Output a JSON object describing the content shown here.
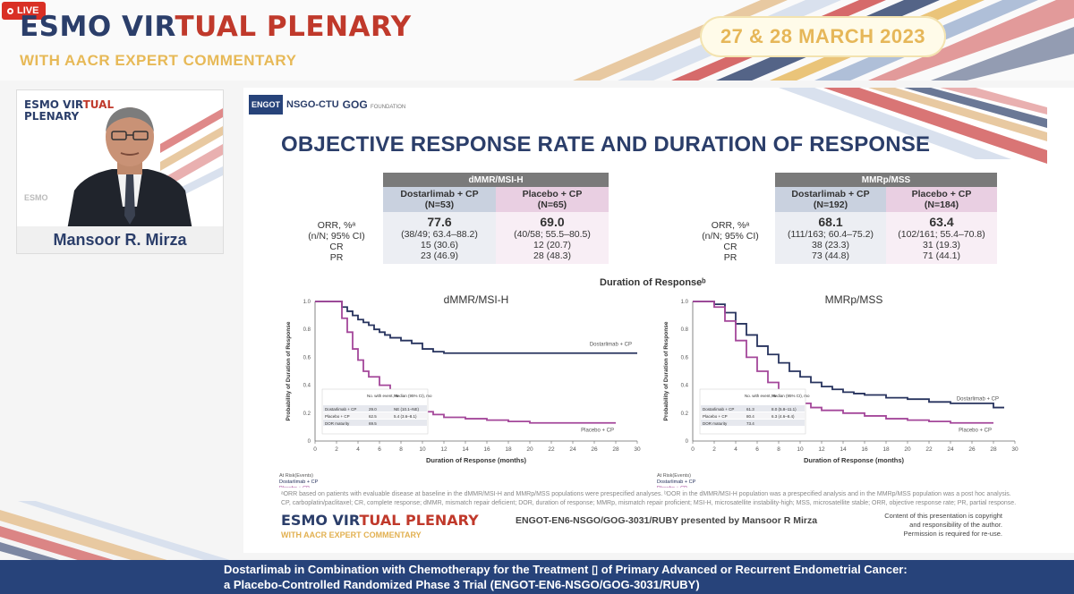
{
  "live_badge": "LIVE",
  "header": {
    "title_a": "ESMO VIR",
    "title_b": "TUAL PLENARY",
    "subtitle": "WITH AACR EXPERT COMMENTARY",
    "date": "27 & 28 MARCH 2023"
  },
  "speaker": {
    "logo_a": "ESMO VIR",
    "logo_b": "TUAL",
    "logo_c": "PLENARY",
    "watermark": "ESMO",
    "name": "Mansoor R. Mirza"
  },
  "slide": {
    "logos": {
      "engot": "ENGOT",
      "nsgo": "NSGO-CTU",
      "gog": "GOG",
      "gog_small": "FOUNDATION"
    },
    "title": "OBJECTIVE RESPONSE RATE AND DURATION OF RESPONSE",
    "row_labels": {
      "orr": "ORR, %ᵃ",
      "ci": "(n/N; 95% CI)",
      "cr": "CR",
      "pr": "PR"
    },
    "table_left": {
      "header": "dMMR/MSI-H",
      "arm1": "Dostarlimab + CP",
      "arm1_n": "(N=53)",
      "arm2": "Placebo + CP",
      "arm2_n": "(N=65)",
      "arm1_orr": "77.6",
      "arm1_ci": "(38/49; 63.4–88.2)",
      "arm1_cr": "15 (30.6)",
      "arm1_pr": "23 (46.9)",
      "arm2_orr": "69.0",
      "arm2_ci": "(40/58; 55.5–80.5)",
      "arm2_cr": "12 (20.7)",
      "arm2_pr": "28 (48.3)"
    },
    "table_right": {
      "header": "MMRp/MSS",
      "arm1": "Dostarlimab + CP",
      "arm1_n": "(N=192)",
      "arm2": "Placebo + CP",
      "arm2_n": "(N=184)",
      "arm1_orr": "68.1",
      "arm1_ci": "(111/163; 60.4–75.2)",
      "arm1_cr": "38 (23.3)",
      "arm1_pr": "73 (44.8)",
      "arm2_orr": "63.4",
      "arm2_ci": "(102/161; 55.4–70.8)",
      "arm2_cr": "31 (19.3)",
      "arm2_pr": "71 (44.1)"
    },
    "dor_title": "Duration of Responseᵇ",
    "footnote_1": "ᵃORR based on patients with evaluable disease at baseline in the dMMR/MSI-H and MMRp/MSS populations were prespecified analyses. ᵇDOR in the dMMR/MSI-H population was a prespecified analysis and in the MMRp/MSS population was a post hoc analysis.",
    "footnote_2": "CP, carboplatin/paclitaxel; CR, complete response; dMMR, mismatch repair deficient; DOR, duration of response; MMRp, mismatch repair proficient; MSI-H, microsatellite instability-high; MSS, microsatellite stable; ORR, objective response rate; PR, partial response.",
    "logo2_a": "ESMO VIR",
    "logo2_b": "TUAL PLENARY",
    "logo2_sub": "WITH AACR EXPERT COMMENTARY",
    "presented": "ENGOT-EN6-NSGO/GOG-3031/RUBY presented by Mansoor R Mirza",
    "copyright_1": "Content of this presentation is copyright",
    "copyright_2": "and responsibility of the author.",
    "copyright_3": "Permission is required for re-use."
  },
  "chart_data": [
    {
      "type": "line",
      "title": "dMMR/MSI-H",
      "xlabel": "Duration of Response (months)",
      "ylabel": "Probability of Duration of Response",
      "xlim": [
        0,
        30
      ],
      "ylim": [
        0,
        1.0
      ],
      "x_ticks": [
        0,
        2,
        4,
        6,
        8,
        10,
        12,
        14,
        16,
        18,
        20,
        22,
        24,
        26,
        28,
        30
      ],
      "y_ticks": [
        0,
        0.2,
        0.4,
        0.6,
        0.8,
        1.0
      ],
      "at_risk_label": "At Risk(Events)",
      "table_header_n": "No. with event, %",
      "table_header_median": "Median (95% CI), mo",
      "table_rows": [
        {
          "arm": "Dostarlimab + CP",
          "n": "29.0",
          "median": "NE (10.1–NE)"
        },
        {
          "arm": "Placebo + CP",
          "n": "62.5",
          "median": "5.4 (3.6–8.1)"
        },
        {
          "arm": "DOR maturity",
          "n": "69.5",
          "median": ""
        }
      ],
      "series": [
        {
          "name": "Dostarlimab + CP",
          "color": "#27335e",
          "x": [
            0,
            2,
            2.5,
            3,
            3.5,
            4,
            4.5,
            5,
            5.5,
            6,
            6.5,
            7,
            8,
            9,
            10,
            11,
            12,
            13,
            14,
            16,
            18,
            20,
            22,
            24,
            26,
            28,
            30
          ],
          "values": [
            1.0,
            1.0,
            0.96,
            0.93,
            0.9,
            0.87,
            0.85,
            0.83,
            0.8,
            0.78,
            0.76,
            0.74,
            0.72,
            0.7,
            0.66,
            0.64,
            0.63,
            0.63,
            0.63,
            0.63,
            0.63,
            0.63,
            0.63,
            0.63,
            0.63,
            0.63,
            0.63
          ]
        },
        {
          "name": "Placebo + CP",
          "color": "#a4479a",
          "x": [
            0,
            2,
            2.5,
            3,
            3.5,
            4,
            4.5,
            5,
            6,
            7,
            8,
            9,
            10,
            11,
            12,
            14,
            16,
            18,
            20,
            22,
            24,
            26,
            27,
            28
          ],
          "values": [
            1.0,
            1.0,
            0.88,
            0.78,
            0.66,
            0.58,
            0.5,
            0.46,
            0.4,
            0.34,
            0.28,
            0.24,
            0.21,
            0.19,
            0.17,
            0.16,
            0.15,
            0.14,
            0.13,
            0.13,
            0.13,
            0.13,
            0.13,
            0.13
          ]
        }
      ]
    },
    {
      "type": "line",
      "title": "MMRp/MSS",
      "xlabel": "Duration of Response (months)",
      "ylabel": "Probability of Duration of Response",
      "xlim": [
        0,
        30
      ],
      "ylim": [
        0,
        1.0
      ],
      "x_ticks": [
        0,
        2,
        4,
        6,
        8,
        10,
        12,
        14,
        16,
        18,
        20,
        22,
        24,
        26,
        28,
        30
      ],
      "y_ticks": [
        0,
        0.2,
        0.4,
        0.6,
        0.8,
        1.0
      ],
      "at_risk_label": "At Risk(Events)",
      "table_header_n": "No. with event, %",
      "table_header_median": "Median (95% CI), mo",
      "table_rows": [
        {
          "arm": "Dostarlimab + CP",
          "n": "61.3",
          "median": "8.0 (5.8–11.1)"
        },
        {
          "arm": "Placebo + CP",
          "n": "80.4",
          "median": "6.3 (4.6–8.4)"
        },
        {
          "arm": "DOR maturity",
          "n": "73.4",
          "median": ""
        }
      ],
      "series": [
        {
          "name": "Dostarlimab + CP",
          "color": "#27335e",
          "x": [
            0,
            2,
            3,
            4,
            5,
            6,
            7,
            8,
            9,
            10,
            11,
            12,
            13,
            14,
            15,
            16,
            18,
            20,
            22,
            24,
            26,
            27,
            28,
            29
          ],
          "values": [
            1.0,
            0.98,
            0.92,
            0.84,
            0.76,
            0.68,
            0.62,
            0.56,
            0.5,
            0.46,
            0.42,
            0.39,
            0.37,
            0.35,
            0.34,
            0.33,
            0.31,
            0.3,
            0.28,
            0.27,
            0.27,
            0.27,
            0.24,
            0.24
          ]
        },
        {
          "name": "Placebo + CP",
          "color": "#a4479a",
          "x": [
            0,
            2,
            3,
            4,
            5,
            6,
            7,
            8,
            9,
            10,
            11,
            12,
            14,
            16,
            18,
            20,
            22,
            24,
            26,
            28
          ],
          "values": [
            1.0,
            0.96,
            0.86,
            0.72,
            0.6,
            0.5,
            0.42,
            0.36,
            0.31,
            0.27,
            0.24,
            0.22,
            0.2,
            0.18,
            0.16,
            0.15,
            0.14,
            0.13,
            0.13,
            0.13
          ]
        }
      ]
    }
  ],
  "bottom": {
    "line1": "Dostarlimab in Combination with Chemotherapy for the Treatment ▯ of Primary Advanced or Recurrent Endometrial Cancer:",
    "line2": "a Placebo-Controlled Randomized Phase 3 Trial (ENGOT-EN6-NSGO/GOG-3031/RUBY)"
  }
}
